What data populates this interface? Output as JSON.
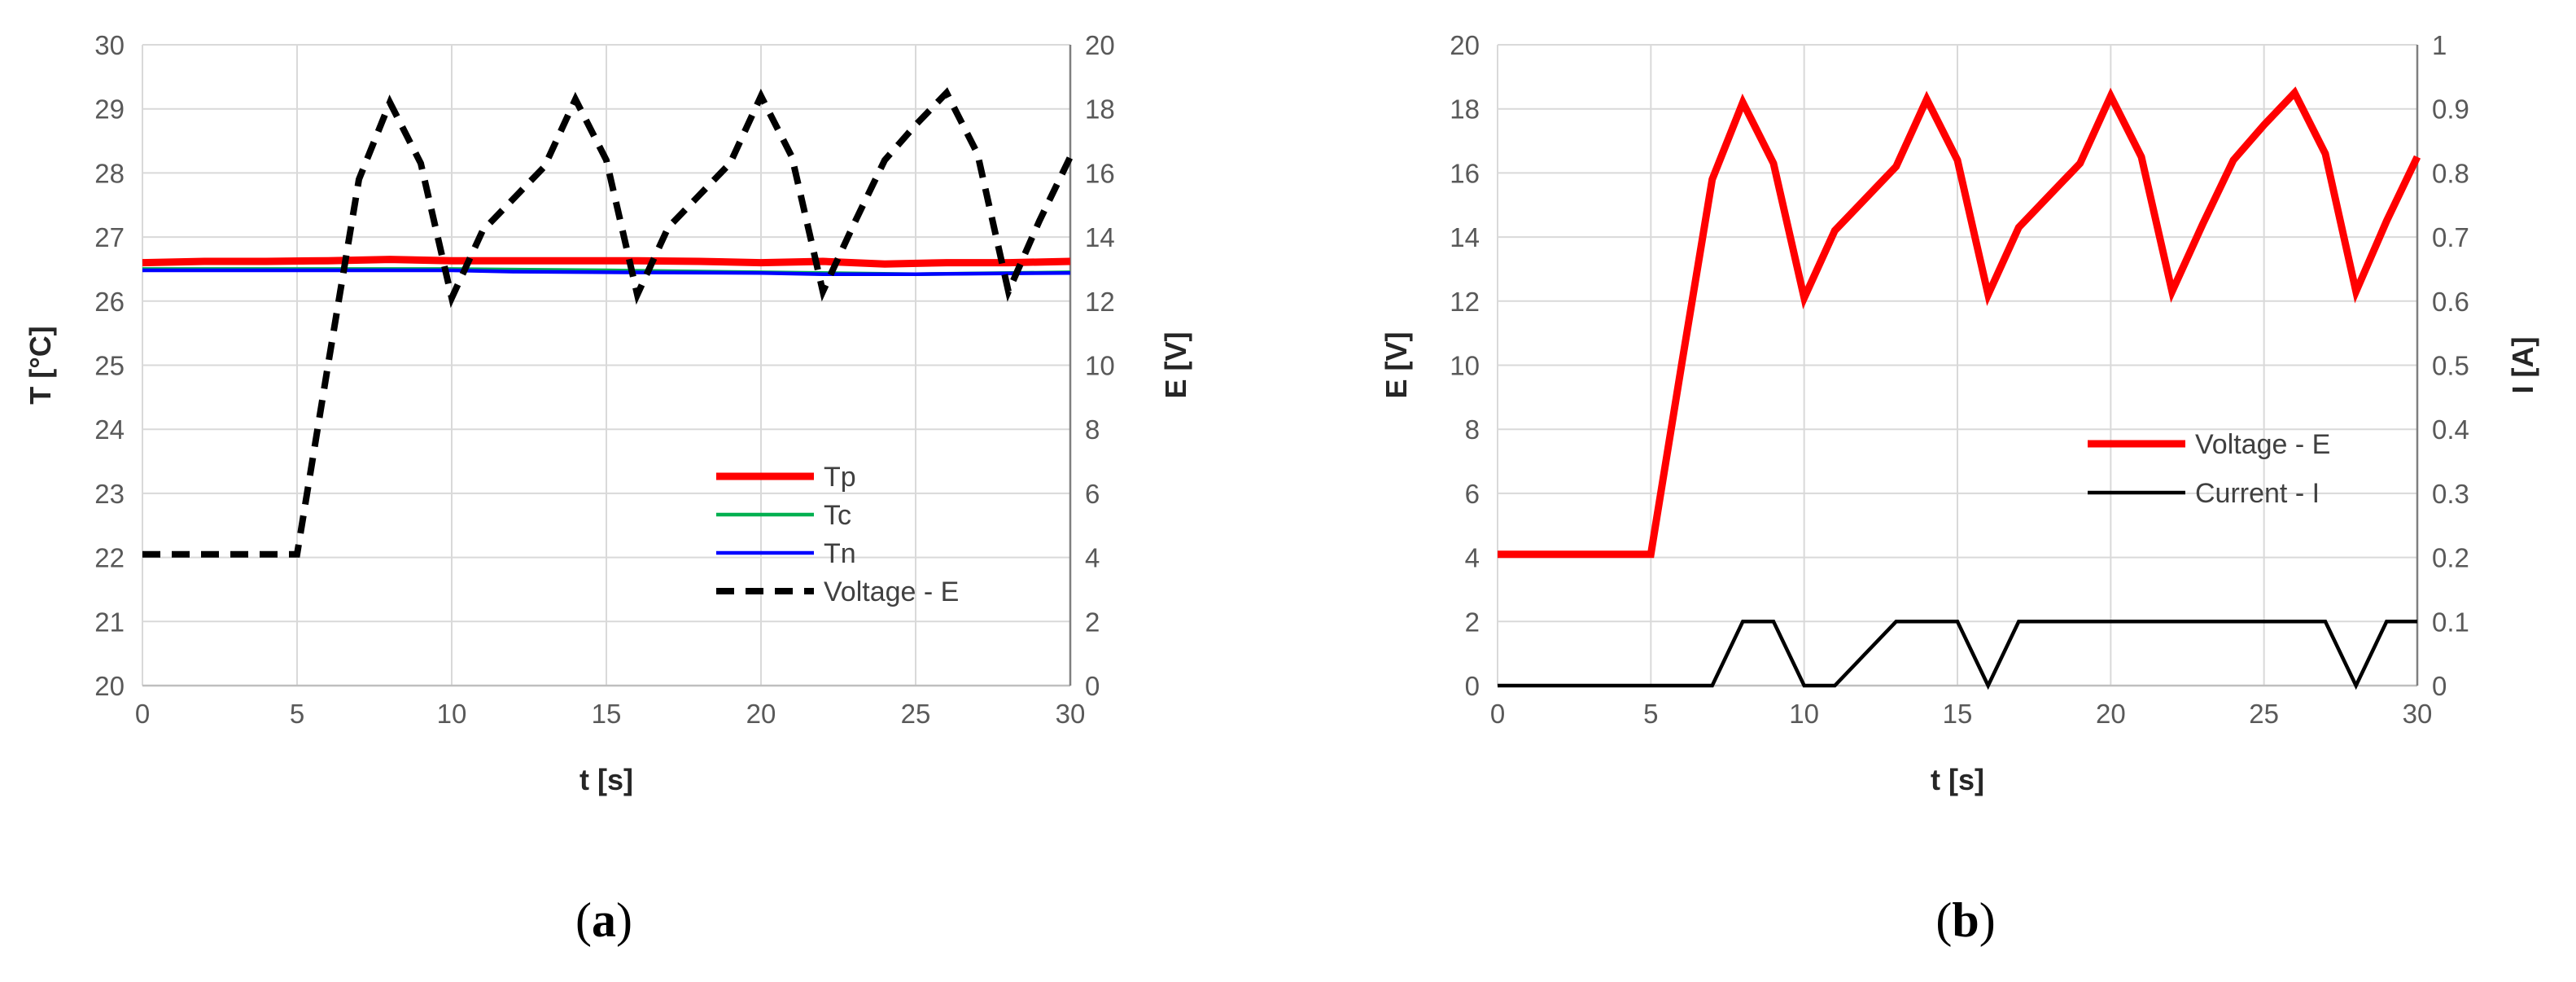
{
  "colors": {
    "red": "#ff0000",
    "green": "#00b050",
    "blue": "#0000ff",
    "black": "#000000",
    "grid": "#d9d9d9",
    "axis": "#bfbfbf"
  },
  "chart_data": [
    {
      "type": "line",
      "panel_label": "a",
      "xlabel": "t [s]",
      "ylabel": "T [°C]",
      "y2label": "E [V]",
      "xlim": [
        0,
        30
      ],
      "ylim": [
        20,
        30
      ],
      "y2lim": [
        0,
        20
      ],
      "x_ticks": [
        "0",
        "5",
        "10",
        "15",
        "20",
        "25",
        "30"
      ],
      "y_ticks": [
        "20",
        "21",
        "22",
        "23",
        "24",
        "25",
        "26",
        "27",
        "28",
        "29",
        "30"
      ],
      "y2_ticks": [
        "0",
        "2",
        "4",
        "6",
        "8",
        "10",
        "12",
        "14",
        "16",
        "18",
        "20"
      ],
      "grid": true,
      "legend_position": "bottom-right",
      "series": [
        {
          "name": "Tp",
          "axis": "left",
          "color": "#ff0000",
          "style": "solid-thick",
          "x": [
            0,
            2,
            4,
            6,
            8,
            10,
            12,
            14,
            16,
            18,
            20,
            22,
            24,
            26,
            28,
            30
          ],
          "y": [
            26.6,
            26.62,
            26.62,
            26.63,
            26.65,
            26.63,
            26.63,
            26.63,
            26.63,
            26.62,
            26.6,
            26.62,
            26.58,
            26.6,
            26.6,
            26.62
          ]
        },
        {
          "name": "Tc",
          "axis": "left",
          "color": "#00b050",
          "style": "solid",
          "x": [
            0,
            5,
            10,
            15,
            20,
            25,
            30
          ],
          "y": [
            26.5,
            26.5,
            26.5,
            26.48,
            26.45,
            26.42,
            26.45
          ]
        },
        {
          "name": "Tn",
          "axis": "left",
          "color": "#0000ff",
          "style": "solid",
          "x": [
            0,
            5,
            10,
            12,
            15,
            20,
            22,
            25,
            30
          ],
          "y": [
            26.48,
            26.48,
            26.48,
            26.46,
            26.45,
            26.44,
            26.42,
            26.42,
            26.44
          ]
        },
        {
          "name": "Voltage - E",
          "axis": "right",
          "color": "#000000",
          "style": "dashed",
          "x": [
            0,
            1,
            2,
            3,
            4,
            5,
            6,
            7,
            8,
            9,
            10,
            11,
            12,
            13,
            14,
            15,
            16,
            17,
            18,
            19,
            20,
            21,
            22,
            23,
            24,
            25,
            26,
            27,
            28,
            29,
            30
          ],
          "y": [
            4.1,
            4.1,
            4.1,
            4.1,
            4.1,
            4.1,
            10.0,
            15.8,
            18.2,
            16.3,
            12.1,
            14.2,
            15.2,
            16.2,
            18.3,
            16.4,
            12.2,
            14.3,
            15.3,
            16.3,
            18.4,
            16.5,
            12.3,
            14.4,
            16.4,
            17.5,
            18.5,
            16.6,
            12.3,
            14.5,
            16.5
          ]
        }
      ]
    },
    {
      "type": "line",
      "panel_label": "b",
      "xlabel": "t [s]",
      "ylabel": "E [V]",
      "y2label": "I [A]",
      "xlim": [
        0,
        30
      ],
      "ylim": [
        0,
        20
      ],
      "y2lim": [
        0,
        1
      ],
      "x_ticks": [
        "0",
        "5",
        "10",
        "15",
        "20",
        "25",
        "30"
      ],
      "y_ticks": [
        "0",
        "2",
        "4",
        "6",
        "8",
        "10",
        "12",
        "14",
        "16",
        "18",
        "20"
      ],
      "y2_ticks": [
        "0",
        "0.1",
        "0.2",
        "0.3",
        "0.4",
        "0.5",
        "0.6",
        "0.7",
        "0.8",
        "0.9",
        "1"
      ],
      "grid": true,
      "legend_position": "middle-right",
      "series": [
        {
          "name": "Voltage - E",
          "axis": "left",
          "color": "#ff0000",
          "style": "solid-thick",
          "x": [
            0,
            1,
            2,
            3,
            4,
            5,
            6,
            7,
            8,
            9,
            10,
            11,
            12,
            13,
            14,
            15,
            16,
            17,
            18,
            19,
            20,
            21,
            22,
            23,
            24,
            25,
            26,
            27,
            28,
            29,
            30
          ],
          "y": [
            4.1,
            4.1,
            4.1,
            4.1,
            4.1,
            4.1,
            10.0,
            15.8,
            18.2,
            16.3,
            12.1,
            14.2,
            15.2,
            16.2,
            18.3,
            16.4,
            12.2,
            14.3,
            15.3,
            16.3,
            18.4,
            16.5,
            12.3,
            14.4,
            16.4,
            17.5,
            18.5,
            16.6,
            12.3,
            14.5,
            16.5
          ]
        },
        {
          "name": "Current - I",
          "axis": "right",
          "color": "#000000",
          "style": "solid",
          "x": [
            0,
            5,
            7,
            8,
            9,
            10,
            11,
            13,
            14,
            15,
            16,
            17,
            18,
            19,
            20,
            25,
            27,
            28,
            29,
            30
          ],
          "y": [
            0,
            0,
            0,
            0.1,
            0.1,
            0,
            0,
            0.1,
            0.1,
            0.1,
            0,
            0.1,
            0.1,
            0.1,
            0.1,
            0.1,
            0.1,
            0,
            0.1,
            0.1
          ]
        }
      ]
    }
  ]
}
